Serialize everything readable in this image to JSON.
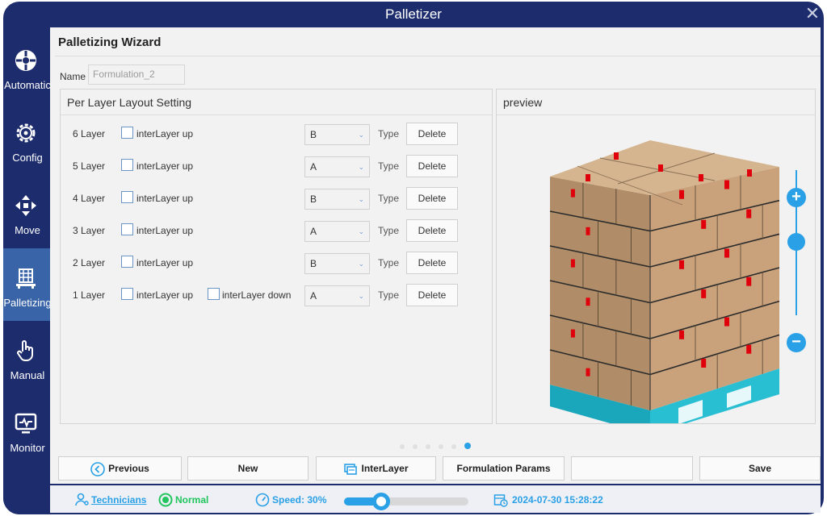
{
  "window": {
    "title": "Palletizer",
    "close_glyph": "✕"
  },
  "sidebar": {
    "items": [
      {
        "label": "Automatic",
        "icon": "automatic-icon",
        "active": false
      },
      {
        "label": "Config",
        "icon": "config-gear-icon",
        "active": false
      },
      {
        "label": "Move",
        "icon": "move-arrows-icon",
        "active": false
      },
      {
        "label": "Palletizing",
        "icon": "palletizing-icon",
        "active": true
      },
      {
        "label": "Manual",
        "icon": "hand-pointer-icon",
        "active": false
      },
      {
        "label": "Monitor",
        "icon": "monitor-icon",
        "active": false
      }
    ]
  },
  "wizard": {
    "title": "Palletizing Wizard",
    "name_label": "Name",
    "name_placeholder": "Formulation_2"
  },
  "layout_panel": {
    "title": "Per Layer Layout Setting",
    "interlayer_up_label": "interLayer up",
    "interlayer_down_label": "interLayer down",
    "type_label": "Type",
    "delete_label": "Delete",
    "rows": [
      {
        "layer": "6 Layer",
        "value": "B",
        "has_down": false
      },
      {
        "layer": "5 Layer",
        "value": "A",
        "has_down": false
      },
      {
        "layer": "4 Layer",
        "value": "B",
        "has_down": false
      },
      {
        "layer": "3 Layer",
        "value": "A",
        "has_down": false
      },
      {
        "layer": "2 Layer",
        "value": "B",
        "has_down": false
      },
      {
        "layer": "1 Layer",
        "value": "A",
        "has_down": true
      }
    ]
  },
  "preview_panel": {
    "title": "preview",
    "zoom_in": "+",
    "zoom_out": "−"
  },
  "pager": {
    "count": 6,
    "active_index": 5
  },
  "buttons": {
    "previous": "Previous",
    "new": "New",
    "interlayer": "InterLayer",
    "formulation_params": "Formulation Params",
    "blank": "",
    "save": "Save"
  },
  "status": {
    "user": "Technicians",
    "state": "Normal",
    "speed": "Speed: 30%",
    "speed_fraction": 0.3,
    "datetime": "2024-07-30 15:28:22"
  },
  "colors": {
    "nav_bg": "#1d2c6d",
    "nav_active": "#3a64a8",
    "accent": "#2aa0e6",
    "status_ok": "#22c55e",
    "box_face": "#c9a27c",
    "pallet": "#29bfd3",
    "tape": "#e0000b"
  }
}
